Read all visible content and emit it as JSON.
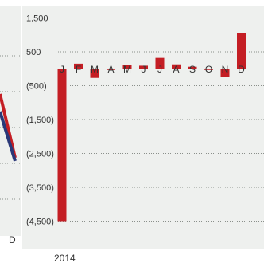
{
  "colors": {
    "navy": "#2a3878",
    "red": "#c41e24",
    "panel": "#eef0ee",
    "grid": "#8a8f8a"
  },
  "left_chart": {
    "last_label": "D"
  },
  "chart_data": [
    {
      "type": "line",
      "description_note": "",
      "series": [
        {
          "name": "",
          "color": "#c41e24"
        },
        {
          "name": "",
          "color": "#2a3878"
        }
      ]
    },
    {
      "type": "bar",
      "title": "",
      "xlabel": "2014",
      "ylabel": "",
      "categories": [
        "J",
        "F",
        "M",
        "A",
        "M",
        "J",
        "J",
        "A",
        "S",
        "O",
        "N",
        "D"
      ],
      "values": [
        -4500,
        150,
        -270,
        -10,
        110,
        90,
        320,
        130,
        60,
        -10,
        -250,
        1050
      ],
      "yticks": [
        "1,500",
        "500",
        "(500)",
        "(1,500)",
        "(2,500)",
        "(3,500)",
        "(4,500)"
      ],
      "ytick_values": [
        1500,
        500,
        -500,
        -1500,
        -2500,
        -3500,
        -4500
      ],
      "ylim": [
        -4700,
        1700
      ],
      "grid": true,
      "bar_color": "#c41e24"
    }
  ]
}
